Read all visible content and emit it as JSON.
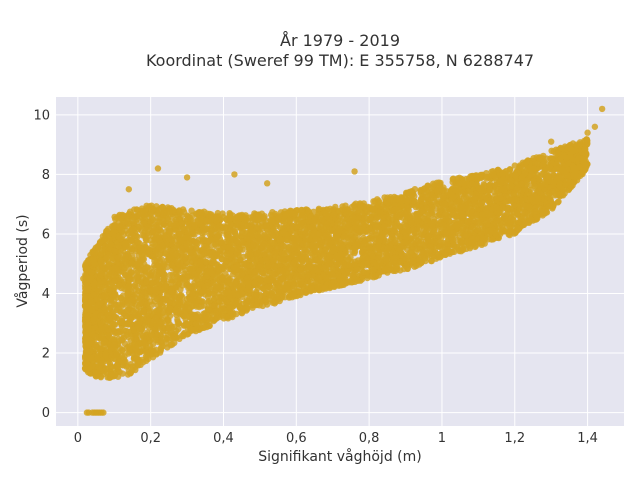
{
  "chart_data": {
    "type": "scatter",
    "title": "År 1979 - 2019",
    "subtitle": "Koordinat (Sweref 99 TM): E 355758, N 6288747",
    "xlabel": "Signifikant våghöjd (m)",
    "ylabel": "Vågperiod (s)",
    "xlim": [
      -0.06,
      1.5
    ],
    "ylim": [
      -0.45,
      10.6
    ],
    "x_ticks": [
      0,
      0.2,
      0.4,
      0.6,
      0.8,
      1,
      1.2,
      1.4
    ],
    "x_tick_labels": [
      "0",
      "0,2",
      "0,4",
      "0,6",
      "0,8",
      "1",
      "1,2",
      "1,4"
    ],
    "y_ticks": [
      0,
      2,
      4,
      6,
      8,
      10
    ],
    "y_tick_labels": [
      "0",
      "2",
      "4",
      "6",
      "8",
      "10"
    ],
    "grid": true,
    "background_color": "#e5e5f0",
    "marker_color": "#d4a321",
    "envelope": [
      {
        "x": 0.02,
        "y_low": 1.4,
        "y_high": 5.0
      },
      {
        "x": 0.05,
        "y_low": 1.2,
        "y_high": 5.6
      },
      {
        "x": 0.1,
        "y_low": 1.15,
        "y_high": 6.6
      },
      {
        "x": 0.15,
        "y_low": 1.3,
        "y_high": 6.8
      },
      {
        "x": 0.2,
        "y_low": 1.8,
        "y_high": 7.0
      },
      {
        "x": 0.25,
        "y_low": 2.2,
        "y_high": 6.9
      },
      {
        "x": 0.3,
        "y_low": 2.6,
        "y_high": 6.8
      },
      {
        "x": 0.4,
        "y_low": 3.1,
        "y_high": 6.7
      },
      {
        "x": 0.5,
        "y_low": 3.5,
        "y_high": 6.7
      },
      {
        "x": 0.6,
        "y_low": 3.9,
        "y_high": 6.8
      },
      {
        "x": 0.7,
        "y_low": 4.2,
        "y_high": 6.9
      },
      {
        "x": 0.8,
        "y_low": 4.5,
        "y_high": 7.1
      },
      {
        "x": 0.9,
        "y_low": 4.8,
        "y_high": 7.4
      },
      {
        "x": 1.0,
        "y_low": 5.2,
        "y_high": 7.8
      },
      {
        "x": 1.1,
        "y_low": 5.6,
        "y_high": 8.0
      },
      {
        "x": 1.2,
        "y_low": 6.0,
        "y_high": 8.3
      },
      {
        "x": 1.3,
        "y_low": 6.8,
        "y_high": 8.8
      },
      {
        "x": 1.4,
        "y_low": 8.2,
        "y_high": 9.2
      }
    ],
    "outliers": [
      {
        "x": 0.025,
        "y": 0
      },
      {
        "x": 0.03,
        "y": 0
      },
      {
        "x": 0.04,
        "y": 0
      },
      {
        "x": 0.045,
        "y": 0
      },
      {
        "x": 0.05,
        "y": 0
      },
      {
        "x": 0.055,
        "y": 0
      },
      {
        "x": 0.06,
        "y": 0
      },
      {
        "x": 0.065,
        "y": 0
      },
      {
        "x": 0.07,
        "y": 0
      },
      {
        "x": 0.015,
        "y": 4.5
      },
      {
        "x": 0.14,
        "y": 7.5
      },
      {
        "x": 0.22,
        "y": 8.2
      },
      {
        "x": 0.3,
        "y": 7.9
      },
      {
        "x": 0.43,
        "y": 8.0
      },
      {
        "x": 0.52,
        "y": 7.7
      },
      {
        "x": 0.76,
        "y": 8.1
      },
      {
        "x": 1.0,
        "y": 7.5
      },
      {
        "x": 1.3,
        "y": 9.1
      },
      {
        "x": 1.37,
        "y": 9.0
      },
      {
        "x": 1.4,
        "y": 9.4
      },
      {
        "x": 1.42,
        "y": 9.6
      },
      {
        "x": 1.44,
        "y": 10.2
      }
    ]
  }
}
